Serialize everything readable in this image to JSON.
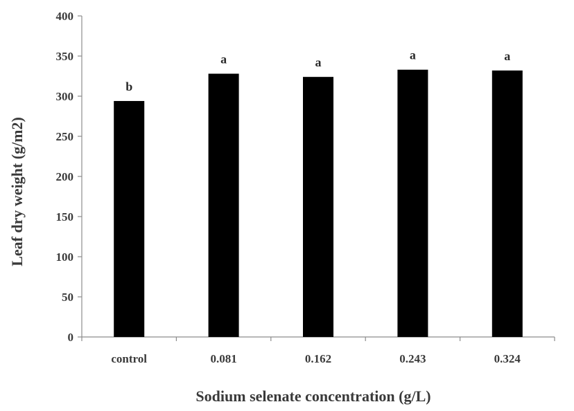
{
  "chart_data": {
    "type": "bar",
    "categories": [
      "control",
      "0.081",
      "0.162",
      "0.243",
      "0.324"
    ],
    "values": [
      294,
      328,
      324,
      333,
      332
    ],
    "significance_letters": [
      "b",
      "a",
      "a",
      "a",
      "a"
    ],
    "xlabel": "Sodium selenate concentration (g/L)",
    "ylabel": "Leaf dry weight (g/m2)",
    "ylim": [
      0,
      400
    ],
    "yticks": [
      0,
      50,
      100,
      150,
      200,
      250,
      300,
      350,
      400
    ],
    "grid": false,
    "bar_color": "#000000"
  }
}
